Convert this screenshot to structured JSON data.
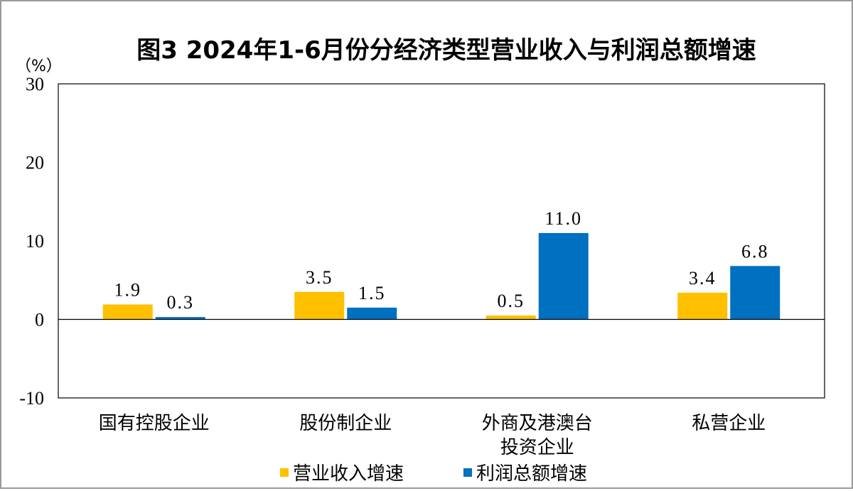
{
  "chart_data": {
    "type": "bar",
    "title": "图3  2024年1-6月份分经济类型营业收入与利润总额增速",
    "unit_label": "（%）",
    "xlabel": "",
    "ylabel": "",
    "ylim": [
      -10,
      30
    ],
    "yticks": [
      30,
      20,
      10,
      0,
      -10
    ],
    "grid": false,
    "legend_position": "bottom",
    "categories": [
      [
        "国有控股企业"
      ],
      [
        "股份制企业"
      ],
      [
        "外商及港澳台",
        "投资企业"
      ],
      [
        "私营企业"
      ]
    ],
    "series": [
      {
        "name": "营业收入增速",
        "color": "#FFC000",
        "values": [
          1.9,
          3.5,
          0.5,
          3.4
        ],
        "labels": [
          "1.9",
          "3.5",
          "0.5",
          "3.4"
        ]
      },
      {
        "name": "利润总额增速",
        "color": "#0070C0",
        "values": [
          0.3,
          1.5,
          11.0,
          6.8
        ],
        "labels": [
          "0.3",
          "1.5",
          "11.0",
          "6.8"
        ]
      }
    ]
  }
}
